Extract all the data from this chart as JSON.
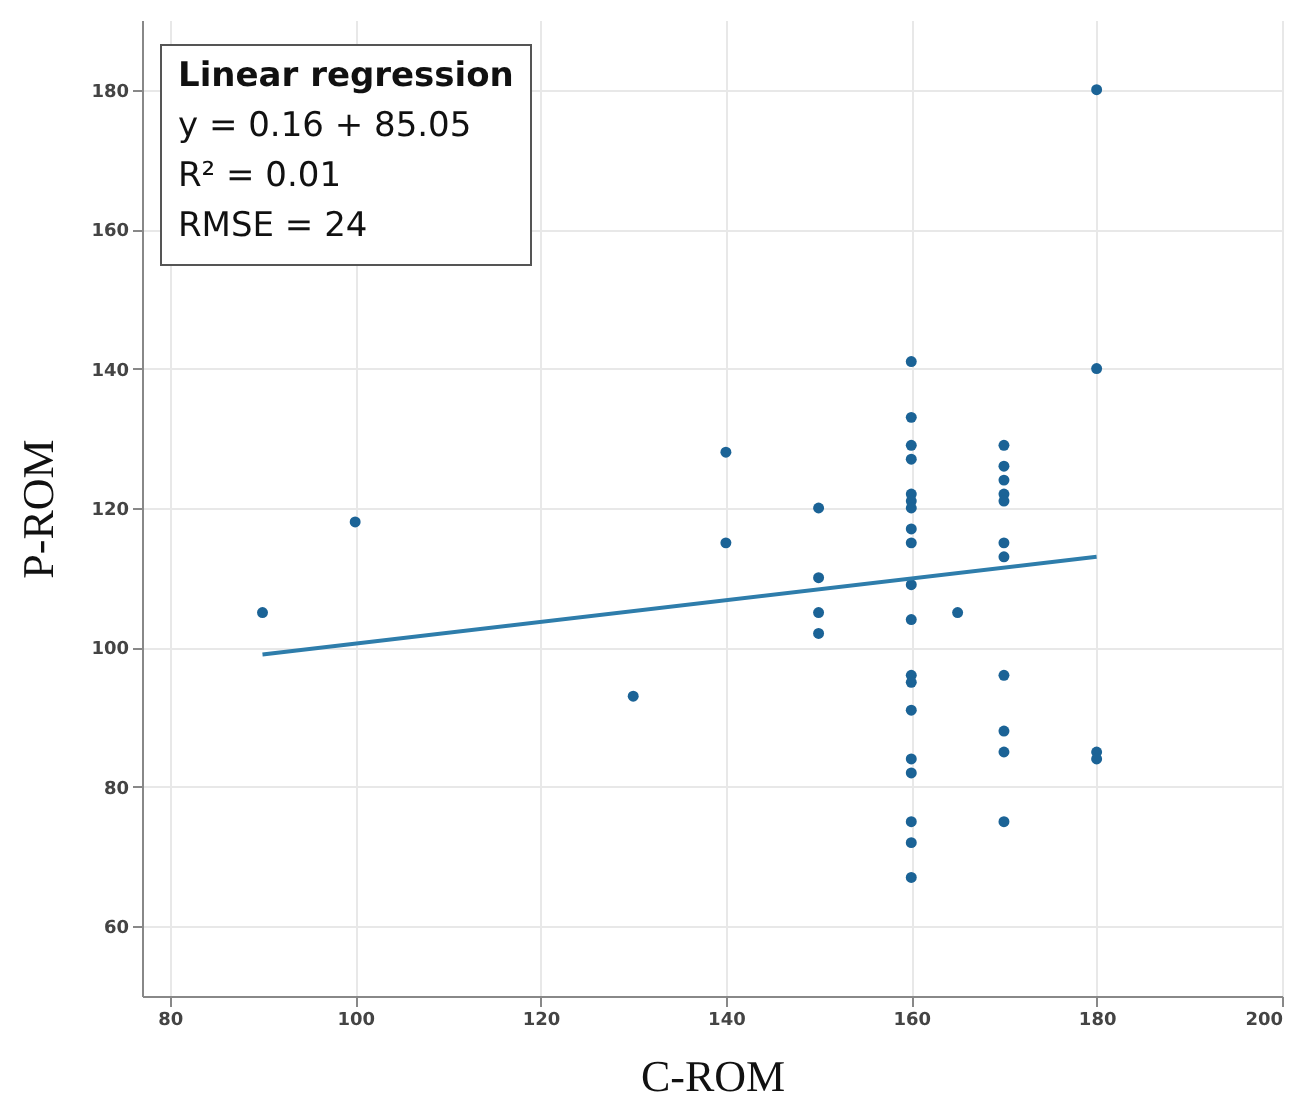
{
  "chart_data": {
    "type": "scatter",
    "xlabel": "C-ROM",
    "ylabel": "P-ROM",
    "annotations": [
      "Linear regression",
      "y = 0.16 + 85.05",
      "R² = 0.01",
      "RMSE = 24"
    ],
    "xlim": [
      77,
      200
    ],
    "xticks": [
      80,
      100,
      120,
      140,
      160,
      180,
      200
    ],
    "ylim": [
      50,
      190
    ],
    "yticks": [
      60,
      80,
      100,
      120,
      140,
      160,
      180
    ],
    "grid": true,
    "series": [
      {
        "marker": "circle",
        "color": "#1b6396",
        "x": [
          90,
          100,
          130,
          140,
          140,
          150,
          150,
          150,
          150,
          160,
          160,
          160,
          160,
          160,
          160,
          160,
          160,
          160,
          160,
          160,
          160,
          160,
          160,
          160,
          160,
          160,
          160,
          160,
          165,
          170,
          170,
          170,
          170,
          170,
          170,
          170,
          170,
          170,
          170,
          170,
          180,
          180,
          180,
          180
        ],
        "values": [
          105,
          118,
          93,
          128,
          115,
          120,
          110,
          105,
          102,
          141,
          133,
          129,
          127,
          122,
          121,
          120,
          117,
          115,
          109,
          104,
          96,
          95,
          91,
          84,
          82,
          75,
          72,
          67,
          105,
          129,
          126,
          124,
          122,
          121,
          115,
          113,
          96,
          88,
          85,
          75,
          180,
          140,
          85,
          84
        ]
      },
      {
        "type": "line",
        "color": "#2e7dab",
        "x": [
          90,
          180
        ],
        "values": [
          99,
          113
        ]
      }
    ]
  }
}
